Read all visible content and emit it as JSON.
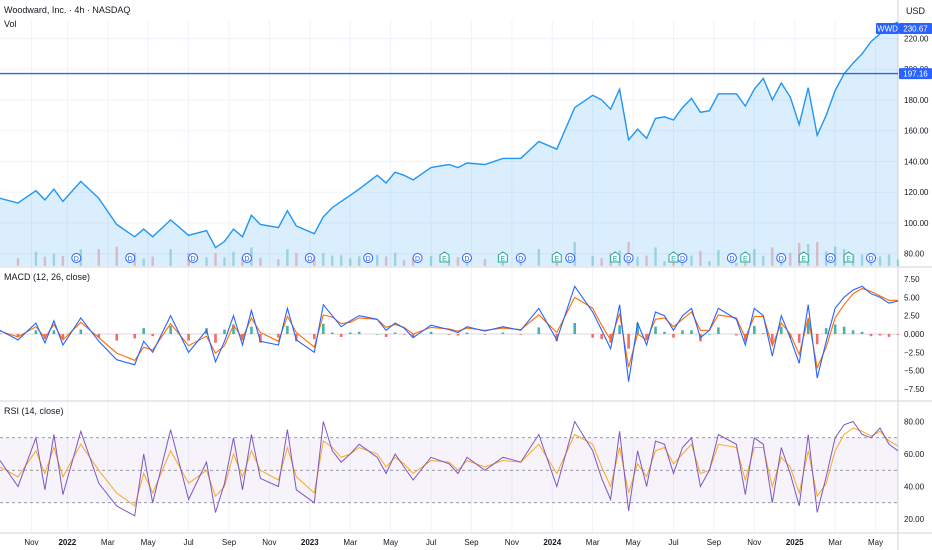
{
  "header": {
    "title": "Woodward, Inc. · 4h · NASDAQ",
    "volume_label": "Vol",
    "currency": "USD"
  },
  "price_tag": {
    "symbol": "WWD",
    "value": "230.67",
    "color": "#2962ff"
  },
  "hline_tag": {
    "value": "197.16",
    "color": "#2962ff"
  },
  "macd_label": "MACD (12, 26, close)",
  "rsi_label": "RSI (14, close)",
  "colors": {
    "price_line": "#2196f3",
    "area_fill": "#2196f3",
    "up": "#26a69a",
    "down": "#ef5350",
    "macd_line": "#2962ff",
    "signal_line": "#ff6d00",
    "rsi_line": "#7e57c2",
    "rsi_ma": "#f9a825",
    "rsi_band": "#7e57c2"
  },
  "chart_data": [
    {
      "type": "area",
      "name": "price",
      "ylim": [
        72,
        232
      ],
      "yticks": [
        80,
        100,
        120,
        140,
        160,
        180,
        200,
        220
      ],
      "hline": 197.16,
      "x_labels": [
        "Nov",
        "2022",
        "Mar",
        "May",
        "Jul",
        "Sep",
        "Nov",
        "2023",
        "Mar",
        "May",
        "Jul",
        "Sep",
        "Nov",
        "2024",
        "Mar",
        "May",
        "Jul",
        "Sep",
        "Nov",
        "2025",
        "Mar",
        "May"
      ],
      "x_index_range": [
        0,
        100
      ],
      "x_label_positions": [
        3.5,
        7.5,
        12,
        16.5,
        21,
        25.5,
        30,
        34.5,
        39,
        43.5,
        48,
        52.5,
        57,
        61.5,
        66,
        70.5,
        75,
        79.5,
        84,
        88.5,
        93,
        97.5
      ],
      "x": [
        0,
        2,
        4,
        5,
        6,
        7,
        9,
        11,
        13,
        15,
        16,
        17,
        19,
        21,
        23,
        24,
        25,
        26,
        27,
        28,
        29,
        31,
        32,
        33,
        35,
        36,
        37,
        38,
        39,
        40,
        42,
        43,
        44,
        45,
        46,
        48,
        50,
        51,
        52,
        54,
        56,
        58,
        60,
        62,
        64,
        66,
        67,
        68,
        69,
        70,
        71,
        72,
        73,
        74,
        75,
        76,
        77,
        78,
        79,
        80,
        82,
        83,
        84,
        85,
        86,
        87,
        88,
        89,
        90,
        91,
        92,
        93,
        94,
        95,
        96,
        97,
        98,
        99,
        100
      ],
      "y": [
        116,
        113,
        121,
        115,
        122,
        114,
        127,
        116,
        99,
        91,
        96,
        91,
        102,
        92,
        95,
        84,
        88,
        96,
        91,
        105,
        99,
        97,
        108,
        98,
        93,
        104,
        110,
        114,
        118,
        122,
        131,
        126,
        133,
        131,
        128,
        136,
        138,
        136,
        139,
        138,
        142,
        142,
        153,
        148,
        175,
        183,
        180,
        174,
        187,
        154,
        161,
        155,
        168,
        169,
        167,
        175,
        181,
        172,
        173,
        184,
        184,
        176,
        187,
        194,
        180,
        191,
        182,
        164,
        188,
        157,
        170,
        186,
        197,
        204,
        210,
        218,
        223,
        228,
        230.67
      ]
    },
    {
      "type": "line",
      "name": "MACD",
      "ylim": [
        -9,
        9
      ],
      "yticks": [
        -7.5,
        -5,
        -2.5,
        0,
        2.5,
        5,
        7.5
      ],
      "ytick_labels": [
        "−7.50",
        "−5.00",
        "−2.50",
        "0.000",
        "2.50",
        "5.00",
        "7.50"
      ],
      "x": [
        0,
        2,
        4,
        5,
        6,
        7,
        9,
        11,
        13,
        15,
        16,
        17,
        19,
        21,
        23,
        24,
        25,
        26,
        27,
        28,
        29,
        31,
        32,
        33,
        35,
        36,
        37,
        38,
        39,
        40,
        42,
        43,
        44,
        45,
        46,
        48,
        50,
        51,
        52,
        54,
        56,
        58,
        60,
        62,
        64,
        66,
        67,
        68,
        69,
        70,
        71,
        72,
        73,
        74,
        75,
        76,
        77,
        78,
        79,
        80,
        82,
        83,
        84,
        85,
        86,
        87,
        88,
        89,
        90,
        91,
        92,
        93,
        94,
        95,
        96,
        97,
        98,
        99,
        100
      ],
      "macd": [
        0.5,
        -0.8,
        1.5,
        -1.2,
        1.8,
        -1.5,
        2.2,
        -1.0,
        -3.5,
        -4.2,
        -1.0,
        -2.5,
        2.5,
        -2.5,
        0.5,
        -3.8,
        -1.0,
        2.5,
        -1.5,
        3.2,
        -1.0,
        -1.5,
        3.5,
        -0.8,
        -2.5,
        4.0,
        2.5,
        1.0,
        1.8,
        2.5,
        2.0,
        0.5,
        1.5,
        0.8,
        -0.5,
        1.2,
        0.6,
        0.2,
        1.0,
        0.4,
        1.0,
        0.5,
        3.5,
        -0.8,
        6.5,
        3.0,
        0.5,
        -2.0,
        4.0,
        -6.5,
        1.5,
        -1.5,
        3.0,
        2.5,
        0.5,
        2.5,
        3.5,
        -0.5,
        0.5,
        3.5,
        2.0,
        -1.5,
        3.5,
        2.5,
        -3.0,
        2.5,
        -0.5,
        -4.0,
        4.0,
        -6.0,
        -1.0,
        3.5,
        5.0,
        6.0,
        6.5,
        5.5,
        5.0,
        4.2,
        4.5
      ],
      "signal": [
        0.4,
        -0.4,
        1.0,
        -0.5,
        1.3,
        -0.8,
        1.6,
        -0.5,
        -2.6,
        -3.6,
        -1.8,
        -2.2,
        1.4,
        -1.6,
        -0.3,
        -2.6,
        -1.6,
        1.2,
        -0.6,
        2.2,
        0.2,
        -1.0,
        2.4,
        0.2,
        -1.8,
        2.6,
        2.3,
        1.4,
        1.6,
        2.2,
        2.0,
        0.9,
        1.3,
        0.9,
        0.0,
        0.9,
        0.7,
        0.4,
        0.8,
        0.5,
        0.8,
        0.6,
        2.6,
        0.2,
        5.0,
        3.5,
        1.2,
        -0.8,
        2.8,
        -4.5,
        0.0,
        -0.8,
        2.0,
        2.2,
        1.0,
        2.0,
        3.0,
        0.5,
        0.5,
        2.6,
        2.2,
        -0.5,
        2.4,
        2.4,
        -1.6,
        1.5,
        0.0,
        -2.8,
        2.2,
        -4.6,
        -1.8,
        2.2,
        4.0,
        5.5,
        6.2,
        5.8,
        5.2,
        4.6,
        4.6
      ]
    },
    {
      "type": "line",
      "name": "RSI",
      "ylim": [
        12,
        92
      ],
      "yticks": [
        20,
        40,
        60,
        80
      ],
      "bands": [
        30,
        50,
        70
      ],
      "x": [
        0,
        2,
        4,
        5,
        6,
        7,
        9,
        11,
        13,
        15,
        16,
        17,
        19,
        21,
        23,
        24,
        25,
        26,
        27,
        28,
        29,
        31,
        32,
        33,
        35,
        36,
        37,
        38,
        39,
        40,
        42,
        43,
        44,
        45,
        46,
        48,
        50,
        51,
        52,
        54,
        56,
        58,
        60,
        62,
        64,
        66,
        67,
        68,
        69,
        70,
        71,
        72,
        73,
        74,
        75,
        76,
        77,
        78,
        79,
        80,
        82,
        83,
        84,
        85,
        86,
        87,
        88,
        89,
        90,
        91,
        92,
        93,
        94,
        95,
        96,
        97,
        98,
        99,
        100
      ],
      "rsi": [
        56,
        40,
        70,
        38,
        72,
        35,
        74,
        42,
        28,
        22,
        60,
        30,
        75,
        32,
        55,
        24,
        42,
        70,
        38,
        72,
        45,
        40,
        75,
        38,
        30,
        80,
        62,
        55,
        60,
        66,
        58,
        48,
        60,
        52,
        44,
        58,
        54,
        48,
        58,
        50,
        58,
        55,
        72,
        40,
        80,
        62,
        45,
        32,
        74,
        25,
        62,
        40,
        68,
        66,
        48,
        64,
        70,
        40,
        50,
        72,
        66,
        35,
        70,
        66,
        30,
        64,
        48,
        28,
        72,
        24,
        46,
        70,
        78,
        80,
        72,
        70,
        76,
        66,
        62
      ],
      "rsi_ma": [
        52,
        46,
        62,
        48,
        64,
        46,
        66,
        50,
        36,
        28,
        48,
        36,
        62,
        42,
        50,
        34,
        40,
        60,
        46,
        62,
        50,
        44,
        64,
        46,
        36,
        68,
        64,
        58,
        60,
        64,
        60,
        52,
        58,
        54,
        48,
        56,
        55,
        50,
        56,
        52,
        56,
        55,
        66,
        48,
        72,
        66,
        52,
        40,
        64,
        36,
        54,
        46,
        62,
        64,
        54,
        60,
        66,
        48,
        50,
        66,
        64,
        44,
        64,
        64,
        40,
        58,
        52,
        36,
        62,
        34,
        42,
        62,
        72,
        76,
        74,
        71,
        74,
        68,
        65
      ]
    }
  ]
}
